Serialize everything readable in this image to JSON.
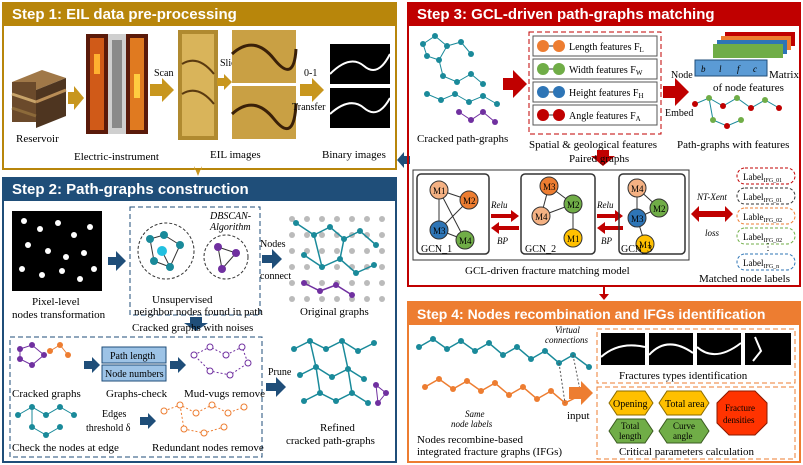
{
  "step1": {
    "title": "Step 1: EIL data pre-processing",
    "reservoir": "Reservoir",
    "scan": "Scan",
    "instrument": "Electric-instrument",
    "slice": "Slice",
    "eil_images": "EIL images",
    "transfer_top": "0-1",
    "transfer_bottom": "Transfer",
    "binary_images": "Binary images"
  },
  "step2": {
    "title": "Step 2: Path-graphs construction",
    "pixel_level_1": "Pixel-level",
    "pixel_level_2": "nodes transformation",
    "dbscan_1": "DBSCAN-",
    "dbscan_2": "Algorithm",
    "nodes_connect_1": "Nodes",
    "nodes_connect_2": "connect",
    "unsupervised_1": "Unsupervised",
    "unsupervised_2": "neighbor nodes found in path",
    "original_graphs": "Original graphs",
    "cracked_noises": "Cracked    graphs with noises",
    "path_length": "Path length",
    "node_numbers": "Node numbers",
    "cracked_graphs": "Cracked graphs",
    "graphs_check": "Graphs-check",
    "mud_vugs": "Mud-vugs remove",
    "prune": "Prune",
    "edges": "Edges",
    "threshold": "threshold δ",
    "check_nodes": "Check the nodes at edge",
    "redundant": "Redundant nodes remove",
    "refined_1": "Refined",
    "refined_2": "cracked path-graphs"
  },
  "step3": {
    "title": "Step 3: GCL-driven path-graphs matching",
    "features": [
      "Length features F",
      "Width features F",
      "Height features F",
      "Angle features F"
    ],
    "feature_subs": [
      "L",
      "W",
      "H",
      "A"
    ],
    "node_embed_1": "Node",
    "node_embed_2": "Embed",
    "matrix_1": "Matrix",
    "matrix_2": "of node features",
    "matrix_letters": [
      "b",
      "l",
      "f",
      "c"
    ],
    "cracked_path_graphs": "Cracked path-graphs",
    "spatial": "Spatial & geological features",
    "path_graphs_features": "Path-graphs with  features",
    "paired": "Paired  graphs",
    "gcn1": "GCN_1",
    "gcn2": "GCN_2",
    "gcn3": "GCN_3",
    "relu": "Relu",
    "bp": "BP",
    "ntxent_1": "NT-Xent",
    "ntxent_2": "loss",
    "gcl_model": "GCL-driven fracture matching model",
    "matched_labels": "Matched node labels",
    "labels": [
      "Label",
      "Label",
      "Lable",
      "Label",
      "Label"
    ],
    "label_subs": [
      "IFG_01",
      "IFG_01",
      "IFG_02",
      "IFG_02",
      "IFG_n"
    ],
    "ellipsis": "⋮",
    "m1": "M1",
    "m2": "M2",
    "m3": "M3",
    "m4": "M4"
  },
  "step4": {
    "title": "Step 4: Nodes recombination and IFGs identification",
    "virtual_1": "Virtual",
    "virtual_2": "connections",
    "same_1": "Same",
    "same_2": "node labels",
    "input": "input",
    "fracture_types": "Fractures types identification",
    "nodes_recombine_1": "Nodes recombine-based",
    "nodes_recombine_2": "integrated fracture graphs (IFGs)",
    "opening": "Opening",
    "total_area": "Total area",
    "fracture_densities_1": "Fracture",
    "fracture_densities_2": "densities",
    "total_length_1": "Total",
    "total_length_2": "length",
    "curve_angle_1": "Curve",
    "curve_angle_2": "angle",
    "critical": "Critical parameters calculation"
  },
  "colors": {
    "step1": "#b8860b",
    "step2": "#1f4e79",
    "step3": "#c00000",
    "step4": "#ed7d31",
    "node_teal": "#1a8a9a",
    "node_purple": "#7030a0",
    "arrow_gold": "#c8961e"
  }
}
